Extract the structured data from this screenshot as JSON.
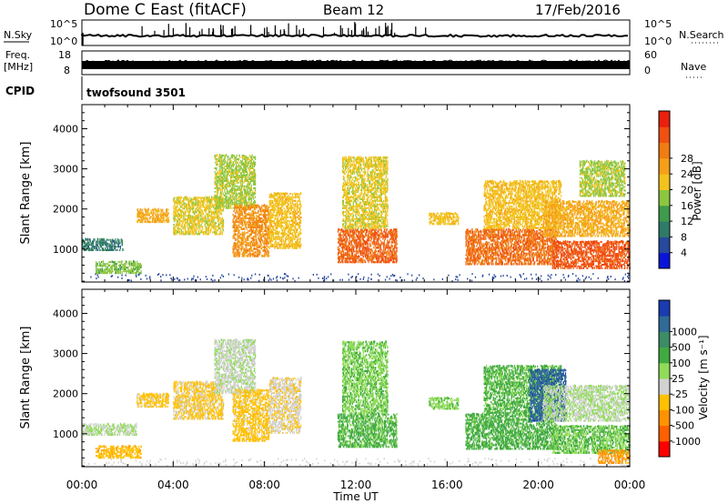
{
  "header": {
    "station": "Dome C East (fitACF)",
    "beam": "Beam 12",
    "date": "17/Feb/2016"
  },
  "strips": {
    "nsky": {
      "label": "N.Sky",
      "tick_top": "10^5",
      "tick_bottom": "10^0"
    },
    "nsearch": {
      "label": "N.Search",
      "tick_top": "10^5",
      "tick_bottom": "10^0"
    },
    "freq": {
      "label_line1": "Freq.",
      "label_line2": "[MHz]",
      "tick_top": "18",
      "tick_bottom": "8"
    },
    "nave": {
      "label": "Nave",
      "tick_top": "60",
      "tick_bottom": "0"
    },
    "cpid": {
      "label": "CPID",
      "program": "twofsound 3501"
    }
  },
  "colors": {
    "power": [
      "#0a14d8",
      "#28489e",
      "#2f7a68",
      "#3e9a4c",
      "#8cc63f",
      "#f2c31c",
      "#f5a018",
      "#f07c12",
      "#f05010",
      "#e8200c"
    ],
    "velocity": [
      "#ff0000",
      "#ff6000",
      "#ff9200",
      "#ffc000",
      "#d2d2d2",
      "#90dc58",
      "#40aa40",
      "#3c8c66",
      "#306a96",
      "#1a3cb0"
    ]
  },
  "chart_data": [
    {
      "type": "heatmap",
      "name": "power-panel",
      "ylabel": "Slant Range [km]",
      "yticks": [
        1000,
        2000,
        3000,
        4000
      ],
      "ylim": [
        180,
        4600
      ],
      "xlim": [
        0,
        24
      ],
      "colorbar": {
        "label": "Power [dB]",
        "ticks": [
          "4",
          "8",
          "12",
          "16",
          "20",
          "24",
          "28"
        ],
        "range": [
          0,
          32
        ]
      },
      "echo_regions": [
        {
          "t": [
            0.6,
            2.6
          ],
          "r": [
            380,
            700
          ],
          "v": 14
        },
        {
          "t": [
            0.0,
            1.8
          ],
          "r": [
            950,
            1250
          ],
          "v": 8
        },
        {
          "t": [
            2.4,
            3.8
          ],
          "r": [
            1650,
            2000
          ],
          "v": 20
        },
        {
          "t": [
            4.0,
            6.2
          ],
          "r": [
            1350,
            2300
          ],
          "v": 17
        },
        {
          "t": [
            5.8,
            7.6
          ],
          "r": [
            2000,
            3350
          ],
          "v": 15
        },
        {
          "t": [
            6.6,
            8.2
          ],
          "r": [
            800,
            2100
          ],
          "v": 22
        },
        {
          "t": [
            8.2,
            9.6
          ],
          "r": [
            1000,
            2400
          ],
          "v": 18
        },
        {
          "t": [
            11.2,
            13.8
          ],
          "r": [
            650,
            1500
          ],
          "v": 26
        },
        {
          "t": [
            11.4,
            13.4
          ],
          "r": [
            1500,
            3300
          ],
          "v": 17
        },
        {
          "t": [
            15.2,
            16.5
          ],
          "r": [
            1600,
            1900
          ],
          "v": 18
        },
        {
          "t": [
            16.8,
            20.8
          ],
          "r": [
            600,
            1500
          ],
          "v": 25
        },
        {
          "t": [
            17.6,
            21.0
          ],
          "r": [
            1500,
            2700
          ],
          "v": 18
        },
        {
          "t": [
            20.6,
            24.0
          ],
          "r": [
            500,
            1200
          ],
          "v": 27
        },
        {
          "t": [
            20.2,
            24.0
          ],
          "r": [
            1300,
            2200
          ],
          "v": 20
        },
        {
          "t": [
            21.8,
            23.8
          ],
          "r": [
            2300,
            3200
          ],
          "v": 15
        }
      ]
    },
    {
      "type": "heatmap",
      "name": "velocity-panel",
      "ylabel": "Slant Range [km]",
      "yticks": [
        1000,
        2000,
        3000,
        4000
      ],
      "ylim": [
        180,
        4600
      ],
      "xlim": [
        0,
        24
      ],
      "xticks": [
        "00:00",
        "04:00",
        "08:00",
        "12:00",
        "16:00",
        "20:00",
        "00:00"
      ],
      "xlabel": "Time UT",
      "colorbar": {
        "label": "Velocity [m s⁻¹]",
        "ticks": [
          "-1000",
          "-500",
          "-100",
          "-25",
          "25",
          "100",
          "500",
          "1000"
        ],
        "range": [
          -1250,
          1250
        ]
      },
      "echo_regions": [
        {
          "t": [
            0.6,
            2.6
          ],
          "r": [
            380,
            700
          ],
          "v": -400
        },
        {
          "t": [
            0.0,
            2.4
          ],
          "r": [
            950,
            1250
          ],
          "v": 0
        },
        {
          "t": [
            2.4,
            3.8
          ],
          "r": [
            1650,
            2000
          ],
          "v": -350
        },
        {
          "t": [
            4.0,
            6.2
          ],
          "r": [
            1350,
            2300
          ],
          "v": -300
        },
        {
          "t": [
            5.8,
            7.6
          ],
          "r": [
            2000,
            3350
          ],
          "v": -50
        },
        {
          "t": [
            6.6,
            8.2
          ],
          "r": [
            800,
            2100
          ],
          "v": -350
        },
        {
          "t": [
            8.2,
            9.6
          ],
          "r": [
            1000,
            2400
          ],
          "v": -200
        },
        {
          "t": [
            11.2,
            13.8
          ],
          "r": [
            650,
            1500
          ],
          "v": 300
        },
        {
          "t": [
            11.4,
            13.4
          ],
          "r": [
            1500,
            3300
          ],
          "v": 200
        },
        {
          "t": [
            15.2,
            16.5
          ],
          "r": [
            1600,
            1900
          ],
          "v": 150
        },
        {
          "t": [
            16.8,
            20.8
          ],
          "r": [
            600,
            1500
          ],
          "v": 350
        },
        {
          "t": [
            17.6,
            21.0
          ],
          "r": [
            1500,
            2700
          ],
          "v": 300
        },
        {
          "t": [
            19.6,
            21.2
          ],
          "r": [
            1300,
            2600
          ],
          "v": 900
        },
        {
          "t": [
            20.6,
            24.0
          ],
          "r": [
            500,
            1200
          ],
          "v": 250
        },
        {
          "t": [
            20.2,
            24.0
          ],
          "r": [
            1300,
            2200
          ],
          "v": 0
        },
        {
          "t": [
            22.6,
            24.0
          ],
          "r": [
            250,
            600
          ],
          "v": -600
        }
      ]
    }
  ]
}
